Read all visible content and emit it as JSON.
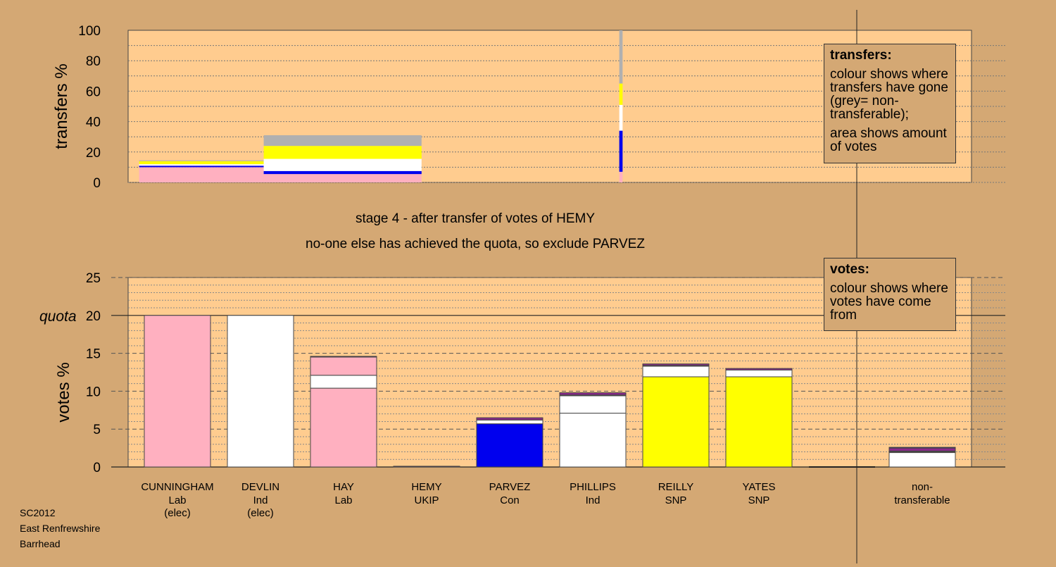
{
  "colors": {
    "background": "#D4A874",
    "plot_fill": "#FFCC8F",
    "Lab": "#FFB0C0",
    "Ind": "#FFFFFF",
    "UKIP": "#8B2A8B",
    "Con": "#0000EE",
    "SNP": "#FFFF00",
    "nontransferable": "#B0B0B0"
  },
  "stage": {
    "line1": "stage 4 - after transfer of votes of HEMY",
    "line2": "no-one else has achieved the quota, so exclude PARVEZ"
  },
  "legend_transfers": {
    "title": "transfers:",
    "text1": "colour shows where transfers have gone (grey= non-transferable);",
    "text2": "area shows amount of votes"
  },
  "legend_votes": {
    "title": "votes:",
    "text1": "colour shows where votes have come from"
  },
  "source": {
    "line1": "SC2012",
    "line2": "East Renfrewshire",
    "line3": "Barrhead"
  },
  "chart_data": [
    {
      "type": "bar",
      "name": "transfers",
      "ylabel": "transfers %",
      "ylim": [
        0,
        100
      ],
      "yticks": [
        0,
        20,
        40,
        60,
        80,
        100
      ],
      "bars": [
        {
          "x0": 0.2,
          "x1": 1.7,
          "segments": [
            {
              "party": "Lab",
              "value": 10
            },
            {
              "party": "Con",
              "value": 1
            },
            {
              "party": "Ind",
              "value": 1
            },
            {
              "party": "SNP",
              "value": 2
            },
            {
              "party": "nontransferable",
              "value": 0.5
            }
          ]
        },
        {
          "x0": 1.7,
          "x1": 3.6,
          "segments": [
            {
              "party": "Lab",
              "value": 5.5
            },
            {
              "party": "Con",
              "value": 2
            },
            {
              "party": "Ind",
              "value": 8
            },
            {
              "party": "SNP",
              "value": 8.5
            },
            {
              "party": "nontransferable",
              "value": 7
            }
          ]
        },
        {
          "x0": 5.98,
          "x1": 6.02,
          "segments": [
            {
              "party": "Lab",
              "value": 7
            },
            {
              "party": "Con",
              "value": 27
            },
            {
              "party": "Ind",
              "value": 17
            },
            {
              "party": "SNP",
              "value": 14
            },
            {
              "party": "nontransferable",
              "value": 35
            }
          ]
        }
      ]
    },
    {
      "type": "bar",
      "name": "votes",
      "ylabel": "votes %",
      "ylim": [
        0,
        25
      ],
      "yticks": [
        0,
        5,
        10,
        15,
        20,
        25
      ],
      "quota": 20,
      "quota_label": "quota",
      "categories": [
        {
          "name": "CUNNINGHAM",
          "party": "Lab",
          "status": "(elec)"
        },
        {
          "name": "DEVLIN",
          "party": "Ind",
          "status": "(elec)"
        },
        {
          "name": "HAY",
          "party": "Lab",
          "status": ""
        },
        {
          "name": "HEMY",
          "party": "UKIP",
          "status": ""
        },
        {
          "name": "PARVEZ",
          "party": "Con",
          "status": ""
        },
        {
          "name": "PHILLIPS",
          "party": "Ind",
          "status": ""
        },
        {
          "name": "REILLY",
          "party": "SNP",
          "status": ""
        },
        {
          "name": "YATES",
          "party": "SNP",
          "status": ""
        }
      ],
      "nontransferable_label_1": "non-",
      "nontransferable_label_2": "transferable",
      "series": [
        {
          "candidate": "CUNNINGHAM",
          "segments": [
            {
              "party": "Lab",
              "value": 20
            }
          ]
        },
        {
          "candidate": "DEVLIN",
          "segments": [
            {
              "party": "Ind",
              "value": 20
            }
          ]
        },
        {
          "candidate": "HAY",
          "segments": [
            {
              "party": "Lab",
              "value": 10.4
            },
            {
              "party": "Ind",
              "value": 1.7
            },
            {
              "party": "Lab",
              "value": 2.4
            },
            {
              "party": "UKIP",
              "value": 0.1
            }
          ]
        },
        {
          "candidate": "HEMY",
          "segments": [
            {
              "party": "UKIP",
              "value": 0.1
            }
          ]
        },
        {
          "candidate": "PARVEZ",
          "segments": [
            {
              "party": "Con",
              "value": 5.7
            },
            {
              "party": "Ind",
              "value": 0.5
            },
            {
              "party": "UKIP",
              "value": 0.3
            }
          ]
        },
        {
          "candidate": "PHILLIPS",
          "segments": [
            {
              "party": "Ind",
              "value": 7.1
            },
            {
              "party": "Ind",
              "value": 2.3
            },
            {
              "party": "Ind",
              "value": 0.1
            },
            {
              "party": "UKIP",
              "value": 0.3
            }
          ]
        },
        {
          "candidate": "REILLY",
          "segments": [
            {
              "party": "SNP",
              "value": 11.9
            },
            {
              "party": "Ind",
              "value": 1.4
            },
            {
              "party": "Ind",
              "value": 0.1
            },
            {
              "party": "UKIP",
              "value": 0.2
            }
          ]
        },
        {
          "candidate": "YATES",
          "segments": [
            {
              "party": "SNP",
              "value": 11.9
            },
            {
              "party": "Ind",
              "value": 0.9
            },
            {
              "party": "UKIP",
              "value": 0.2
            }
          ]
        },
        {
          "candidate": "non-transferable",
          "segments": [
            {
              "party": "Ind",
              "value": 1.9
            },
            {
              "party": "Lab",
              "value": 0.1
            },
            {
              "party": "Ind",
              "value": 0.1
            },
            {
              "party": "UKIP",
              "value": 0.4
            },
            {
              "party": "Con",
              "value": 0.1
            }
          ]
        }
      ]
    }
  ]
}
